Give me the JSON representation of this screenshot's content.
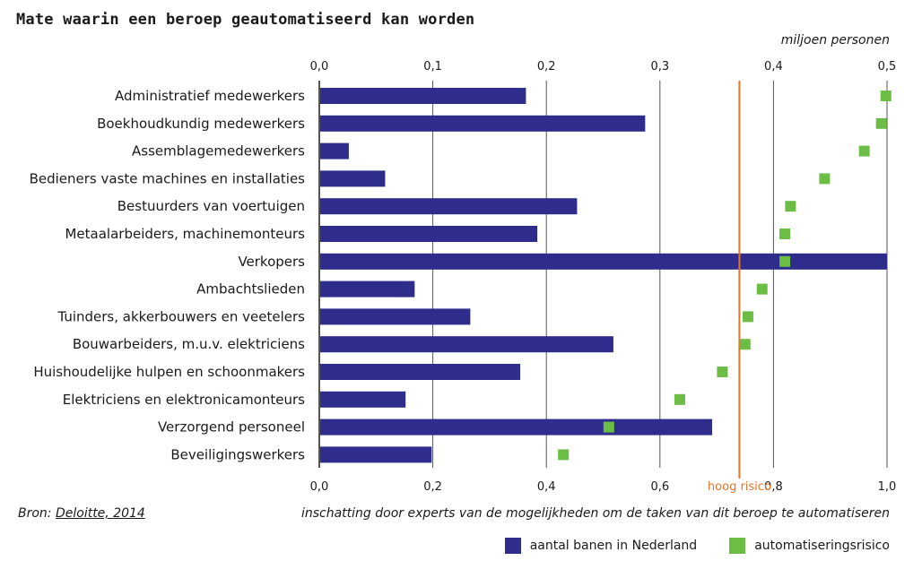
{
  "title": "Mate waarin een beroep geautomatiseerd kan worden",
  "unit_label": "miljoen personen",
  "source_prefix": "Bron: ",
  "source_link": "Deloitte, 2014",
  "bottom_axis_label": "inschatting door experts van de mogelijkheden om de taken van dit beroep te automatiseren",
  "threshold_label": "hoog risico",
  "colors": {
    "bars": "#2e2d8c",
    "markers": "#6cbd45",
    "threshold": "#e8742a",
    "grid": "#555555"
  },
  "legend": [
    {
      "label": "aantal banen in Nederland",
      "color": "#2e2d8c"
    },
    {
      "label": "automatiseringsrisico",
      "color": "#6cbd45"
    }
  ],
  "chart_data": {
    "type": "bar",
    "orientation": "horizontal",
    "title": "Mate waarin een beroep geautomatiseerd kan worden",
    "categories": [
      "Administratief medewerkers",
      "Boekhoudkundig medewerkers",
      "Assemblagemedewerkers",
      "Bedieners vaste machines en installaties",
      "Bestuurders van voertuigen",
      "Metaalarbeiders, machinemonteurs",
      "Verkopers",
      "Ambachtslieden",
      "Tuinders, akkerbouwers en veetelers",
      "Bouwarbeiders, m.u.v. elektriciens",
      "Huishoudelijke hulpen en schoonmakers",
      "Elektriciens en elektronicamonteurs",
      "Verzorgend personeel",
      "Beveiligingswerkers"
    ],
    "series": [
      {
        "name": "aantal banen in Nederland",
        "axis": "top",
        "values": [
          0.182,
          0.287,
          0.026,
          0.058,
          0.227,
          0.192,
          0.5,
          0.084,
          0.133,
          0.259,
          0.177,
          0.076,
          0.346,
          0.099
        ]
      },
      {
        "name": "automatiseringsrisico",
        "axis": "bottom",
        "values": [
          0.998,
          0.99,
          0.96,
          0.89,
          0.83,
          0.82,
          0.82,
          0.78,
          0.755,
          0.75,
          0.71,
          0.635,
          0.51,
          0.43
        ]
      }
    ],
    "top_axis": {
      "label": "miljoen personen",
      "range": [
        0,
        0.5
      ],
      "ticks": [
        "0,0",
        "0,1",
        "0,2",
        "0,3",
        "0,4",
        "0,5"
      ],
      "tick_values": [
        0,
        0.1,
        0.2,
        0.3,
        0.4,
        0.5
      ]
    },
    "bottom_axis": {
      "label": "inschatting door experts van de mogelijkheden om de taken van dit beroep te automatiseren",
      "range": [
        0,
        1
      ],
      "ticks": [
        "0,0",
        "0,2",
        "0,4",
        "0,6",
        "0,8",
        "1,0"
      ],
      "tick_values": [
        0,
        0.2,
        0.4,
        0.6,
        0.8,
        1.0
      ]
    },
    "threshold": {
      "value": 0.74,
      "label": "hoog risico"
    },
    "grid": true,
    "legend_position": "bottom-right"
  }
}
